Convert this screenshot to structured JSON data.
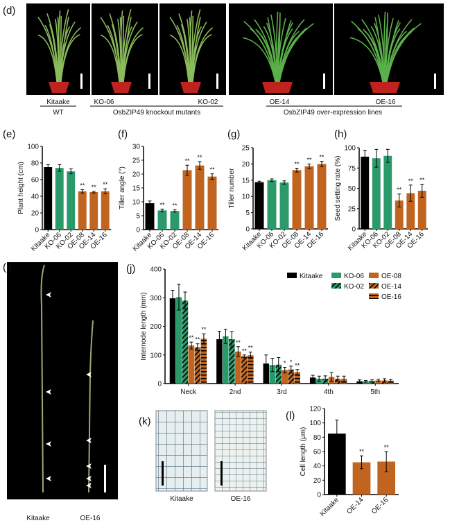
{
  "figure": {
    "panel_labels": [
      "(d)",
      "(e)",
      "(f)",
      "(g)",
      "(h)",
      "(i)",
      "(j)",
      "(k)",
      "(l)"
    ],
    "photo_d": {
      "labels": [
        "Kitaake",
        "WT",
        "KO-06",
        "KO-02",
        "OsbZIP49 knockout mutants",
        "OE-14",
        "OE-16",
        "OsbZIP49 over-expression lines"
      ]
    },
    "photo_i": {
      "labels": [
        "Kitaake",
        "OE-16"
      ]
    },
    "photo_k": {
      "labels": [
        "Kitaake",
        "OE-16"
      ]
    }
  },
  "colors": {
    "kitaake": "#000000",
    "ko": "#2a9a6a",
    "oe": "#c0641f"
  },
  "chart_data": [
    {
      "type": "bar",
      "panel": "(e)",
      "ylabel": "Plant height (cm)",
      "ylim": [
        0,
        100
      ],
      "yticks": [
        0,
        20,
        40,
        60,
        80,
        100
      ],
      "categories": [
        "Kitaake",
        "KO-06",
        "KO-02",
        "OE-08",
        "OE-14",
        "OE-16"
      ],
      "values": [
        75,
        74,
        70,
        46,
        45,
        46
      ],
      "errors": [
        3,
        4,
        3,
        2,
        1,
        3
      ],
      "significance": [
        "",
        "",
        "",
        "**",
        "**",
        "**"
      ]
    },
    {
      "type": "bar",
      "panel": "(f)",
      "ylabel": "Tiller angle (°)",
      "ylim": [
        0,
        30
      ],
      "yticks": [
        0,
        5,
        10,
        15,
        20,
        25,
        30
      ],
      "categories": [
        "Kitaake",
        "KO-06",
        "KO-02",
        "OE-08",
        "OE-14",
        "OE-16"
      ],
      "values": [
        9.5,
        6.9,
        6.7,
        21.4,
        23.1,
        19.1
      ],
      "errors": [
        0.8,
        0.5,
        0.4,
        1.8,
        1.4,
        1.0
      ],
      "significance": [
        "",
        "**",
        "**",
        "**",
        "**",
        "**"
      ]
    },
    {
      "type": "bar",
      "panel": "(g)",
      "ylabel": "Tiller number",
      "ylim": [
        0,
        25
      ],
      "yticks": [
        0,
        5,
        10,
        15,
        20,
        25
      ],
      "categories": [
        "Kitaake",
        "KO-06",
        "KO-02",
        "OE-08",
        "OE-14",
        "OE-16"
      ],
      "values": [
        14.4,
        15.0,
        14.3,
        18.1,
        19.3,
        20.0
      ],
      "errors": [
        0.3,
        0.4,
        0.5,
        0.6,
        0.7,
        0.8
      ],
      "significance": [
        "",
        "",
        "",
        "**",
        "**",
        "**"
      ]
    },
    {
      "type": "bar",
      "panel": "(h)",
      "ylabel": "Seed setting rate (%)",
      "ylim": [
        0,
        100
      ],
      "yticks": [
        0,
        25,
        50,
        75,
        100
      ],
      "categories": [
        "Kitaake",
        "KO-06",
        "KO-02",
        "OE-08",
        "OE-14",
        "OE-16"
      ],
      "values": [
        89,
        87,
        90,
        35,
        44,
        47
      ],
      "errors": [
        8,
        11,
        8,
        8,
        10,
        8
      ],
      "significance": [
        "",
        "",
        "",
        "**",
        "**",
        "**"
      ]
    },
    {
      "type": "bar",
      "panel": "(j)",
      "ylabel": "Internode length (mm)",
      "ylim": [
        0,
        400
      ],
      "yticks": [
        0,
        100,
        200,
        300,
        400
      ],
      "categories": [
        "Neck",
        "2nd",
        "3rd",
        "4th",
        "5th"
      ],
      "legend": "top-right",
      "series": [
        {
          "name": "Kitaake",
          "values": [
            298,
            155,
            70,
            21,
            8
          ],
          "errors": [
            28,
            28,
            30,
            8,
            5
          ],
          "significance": [
            "",
            "",
            "",
            "",
            ""
          ]
        },
        {
          "name": "KO-06",
          "values": [
            302,
            165,
            65,
            17,
            8
          ],
          "errors": [
            45,
            25,
            23,
            9,
            3
          ],
          "significance": [
            "",
            "",
            "",
            "",
            ""
          ]
        },
        {
          "name": "KO-02",
          "values": [
            290,
            155,
            66,
            17,
            9
          ],
          "errors": [
            30,
            27,
            25,
            10,
            4
          ],
          "significance": [
            "",
            "",
            "",
            "",
            ""
          ]
        },
        {
          "name": "OE-08",
          "values": [
            133,
            112,
            47,
            23,
            11
          ],
          "errors": [
            12,
            17,
            10,
            16,
            4
          ],
          "significance": [
            "**",
            "**",
            "*",
            "",
            ""
          ]
        },
        {
          "name": "OE-14",
          "values": [
            127,
            95,
            49,
            17,
            11
          ],
          "errors": [
            12,
            5,
            12,
            9,
            6
          ],
          "significance": [
            "**",
            "**",
            "*",
            "",
            ""
          ]
        },
        {
          "name": "OE-16",
          "values": [
            157,
            99,
            40,
            16,
            10
          ],
          "errors": [
            17,
            11,
            9,
            10,
            4
          ],
          "significance": [
            "**",
            "**",
            "**",
            "",
            ""
          ]
        }
      ]
    },
    {
      "type": "bar",
      "panel": "(l)",
      "ylabel": "Cell length (μm)",
      "ylim": [
        0,
        120
      ],
      "yticks": [
        0,
        20,
        40,
        60,
        80,
        100,
        120
      ],
      "categories": [
        "Kitaake",
        "OE-14",
        "OE-16"
      ],
      "values": [
        85,
        45,
        46
      ],
      "errors": [
        19,
        9,
        14
      ],
      "significance": [
        "",
        "**",
        "**"
      ]
    }
  ]
}
